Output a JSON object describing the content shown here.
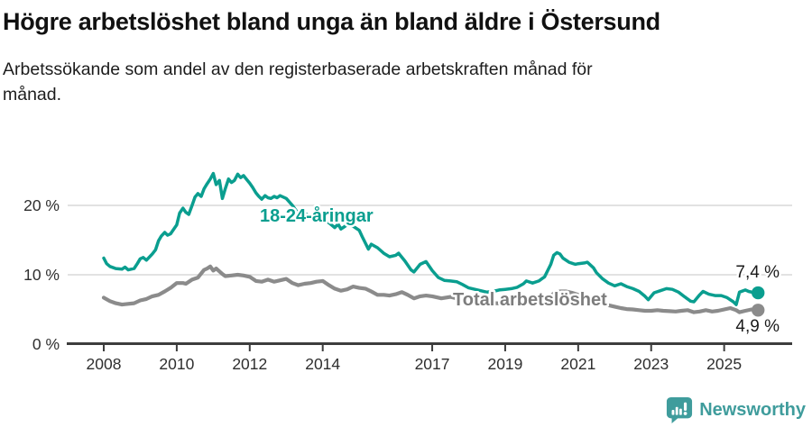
{
  "header": {
    "title": "Högre arbetslöshet bland unga än bland äldre i Östersund",
    "subtitle": "Arbetssökande som andel av den registerbaserade arbetskraften månad för månad."
  },
  "footer": {
    "brand": "Newsworthy",
    "logo_icon": "bar-chart-exclamation-speech-bubble"
  },
  "colors": {
    "youth_line": "#0a9e8f",
    "total_line": "#8b8b8b",
    "total_label": "#7d7d7d",
    "axis": "#3d3d3d",
    "gridline": "#d8d8d8",
    "text_dark": "#1a1a1a",
    "brand_teal": "#3f9c9c"
  },
  "chart_data": {
    "type": "line",
    "title": "Högre arbetslöshet bland unga än bland äldre i Östersund",
    "subtitle": "Arbetssökande som andel av den registerbaserade arbetskraften månad för månad.",
    "x_range": [
      2008.0,
      2025.9
    ],
    "ylim": [
      0,
      25.5
    ],
    "grid": "horizontal-only",
    "legend_position": "inline-labels-on-lines",
    "y_ticks": [
      {
        "v": 0,
        "label": "0 %"
      },
      {
        "v": 10,
        "label": "10 %"
      },
      {
        "v": 20,
        "label": "20 %"
      }
    ],
    "x_ticks": [
      {
        "v": 2008,
        "label": "2008"
      },
      {
        "v": 2010,
        "label": "2010"
      },
      {
        "v": 2012,
        "label": "2012"
      },
      {
        "v": 2014,
        "label": "2014"
      },
      {
        "v": 2017,
        "label": "2017"
      },
      {
        "v": 2019,
        "label": "2019"
      },
      {
        "v": 2021,
        "label": "2021"
      },
      {
        "v": 2023,
        "label": "2023"
      },
      {
        "v": 2025,
        "label": "2025"
      }
    ],
    "series": [
      {
        "name": "18-24-åringar",
        "color": "#0a9e8f",
        "end_label": "7,4 %",
        "end_value": 7.4,
        "points": [
          [
            2008.0,
            12.4
          ],
          [
            2008.08,
            11.6
          ],
          [
            2008.17,
            11.2
          ],
          [
            2008.33,
            10.9
          ],
          [
            2008.5,
            10.8
          ],
          [
            2008.58,
            11.1
          ],
          [
            2008.67,
            10.7
          ],
          [
            2008.83,
            10.9
          ],
          [
            2008.92,
            11.6
          ],
          [
            2009.0,
            12.3
          ],
          [
            2009.08,
            12.5
          ],
          [
            2009.17,
            12.1
          ],
          [
            2009.33,
            13.0
          ],
          [
            2009.42,
            13.6
          ],
          [
            2009.5,
            14.9
          ],
          [
            2009.58,
            15.6
          ],
          [
            2009.67,
            16.1
          ],
          [
            2009.75,
            15.7
          ],
          [
            2009.83,
            15.9
          ],
          [
            2009.92,
            16.6
          ],
          [
            2010.0,
            17.2
          ],
          [
            2010.08,
            18.9
          ],
          [
            2010.17,
            19.6
          ],
          [
            2010.25,
            19.0
          ],
          [
            2010.33,
            18.7
          ],
          [
            2010.42,
            20.0
          ],
          [
            2010.5,
            21.2
          ],
          [
            2010.58,
            21.7
          ],
          [
            2010.67,
            21.3
          ],
          [
            2010.75,
            22.4
          ],
          [
            2010.83,
            23.1
          ],
          [
            2010.92,
            23.8
          ],
          [
            2011.0,
            24.6
          ],
          [
            2011.08,
            23.0
          ],
          [
            2011.17,
            23.6
          ],
          [
            2011.25,
            21.0
          ],
          [
            2011.33,
            22.4
          ],
          [
            2011.42,
            23.8
          ],
          [
            2011.5,
            23.3
          ],
          [
            2011.58,
            23.6
          ],
          [
            2011.67,
            24.5
          ],
          [
            2011.75,
            24.0
          ],
          [
            2011.83,
            24.3
          ],
          [
            2011.92,
            23.7
          ],
          [
            2012.0,
            23.2
          ],
          [
            2012.08,
            22.6
          ],
          [
            2012.17,
            21.8
          ],
          [
            2012.25,
            21.3
          ],
          [
            2012.33,
            20.9
          ],
          [
            2012.42,
            21.4
          ],
          [
            2012.5,
            21.1
          ],
          [
            2012.58,
            21.0
          ],
          [
            2012.67,
            21.3
          ],
          [
            2012.75,
            21.1
          ],
          [
            2012.83,
            21.4
          ],
          [
            2012.92,
            21.2
          ],
          [
            2013.0,
            21.0
          ],
          [
            2013.17,
            20.0
          ],
          [
            2013.33,
            18.8
          ],
          [
            2013.5,
            18.9
          ],
          [
            2013.67,
            18.3
          ],
          [
            2013.83,
            17.9
          ],
          [
            2014.0,
            18.0
          ],
          [
            2014.17,
            17.5
          ],
          [
            2014.33,
            16.8
          ],
          [
            2014.42,
            17.3
          ],
          [
            2014.5,
            16.6
          ],
          [
            2014.67,
            17.2
          ],
          [
            2014.83,
            17.0
          ],
          [
            2015.0,
            16.4
          ],
          [
            2015.08,
            15.5
          ],
          [
            2015.25,
            13.7
          ],
          [
            2015.33,
            14.4
          ],
          [
            2015.5,
            13.9
          ],
          [
            2015.67,
            13.1
          ],
          [
            2015.83,
            12.6
          ],
          [
            2016.0,
            12.8
          ],
          [
            2016.08,
            13.1
          ],
          [
            2016.25,
            12.0
          ],
          [
            2016.42,
            10.7
          ],
          [
            2016.5,
            10.4
          ],
          [
            2016.67,
            11.5
          ],
          [
            2016.83,
            11.9
          ],
          [
            2017.0,
            10.6
          ],
          [
            2017.17,
            9.6
          ],
          [
            2017.33,
            9.2
          ],
          [
            2017.5,
            9.1
          ],
          [
            2017.67,
            9.0
          ],
          [
            2017.83,
            8.6
          ],
          [
            2018.0,
            8.1
          ],
          [
            2018.17,
            7.9
          ],
          [
            2018.33,
            7.7
          ],
          [
            2018.5,
            7.5
          ],
          [
            2018.67,
            7.6
          ],
          [
            2018.83,
            7.8
          ],
          [
            2019.0,
            7.9
          ],
          [
            2019.17,
            8.0
          ],
          [
            2019.33,
            8.2
          ],
          [
            2019.5,
            8.7
          ],
          [
            2019.58,
            9.1
          ],
          [
            2019.75,
            8.8
          ],
          [
            2019.92,
            9.1
          ],
          [
            2020.0,
            9.4
          ],
          [
            2020.08,
            9.7
          ],
          [
            2020.25,
            11.5
          ],
          [
            2020.33,
            12.8
          ],
          [
            2020.42,
            13.2
          ],
          [
            2020.5,
            13.0
          ],
          [
            2020.58,
            12.4
          ],
          [
            2020.75,
            11.8
          ],
          [
            2020.92,
            11.5
          ],
          [
            2021.0,
            11.6
          ],
          [
            2021.17,
            11.7
          ],
          [
            2021.25,
            11.8
          ],
          [
            2021.42,
            11.0
          ],
          [
            2021.5,
            10.3
          ],
          [
            2021.67,
            9.4
          ],
          [
            2021.83,
            8.8
          ],
          [
            2022.0,
            8.4
          ],
          [
            2022.17,
            8.7
          ],
          [
            2022.33,
            8.3
          ],
          [
            2022.5,
            8.0
          ],
          [
            2022.67,
            7.6
          ],
          [
            2022.83,
            6.9
          ],
          [
            2022.92,
            6.4
          ],
          [
            2023.08,
            7.4
          ],
          [
            2023.25,
            7.7
          ],
          [
            2023.42,
            8.0
          ],
          [
            2023.58,
            7.9
          ],
          [
            2023.75,
            7.5
          ],
          [
            2023.92,
            6.8
          ],
          [
            2024.0,
            6.5
          ],
          [
            2024.08,
            6.2
          ],
          [
            2024.17,
            6.1
          ],
          [
            2024.33,
            7.1
          ],
          [
            2024.42,
            7.6
          ],
          [
            2024.58,
            7.2
          ],
          [
            2024.75,
            7.0
          ],
          [
            2024.92,
            7.0
          ],
          [
            2025.08,
            6.7
          ],
          [
            2025.25,
            6.1
          ],
          [
            2025.33,
            5.7
          ],
          [
            2025.42,
            7.5
          ],
          [
            2025.58,
            7.8
          ],
          [
            2025.67,
            7.6
          ],
          [
            2025.83,
            7.4
          ]
        ]
      },
      {
        "name": "Total arbetslöshet",
        "color": "#8b8b8b",
        "end_label": "4,9 %",
        "end_value": 4.9,
        "points": [
          [
            2008.0,
            6.7
          ],
          [
            2008.17,
            6.2
          ],
          [
            2008.33,
            5.9
          ],
          [
            2008.5,
            5.7
          ],
          [
            2008.67,
            5.8
          ],
          [
            2008.83,
            5.9
          ],
          [
            2009.0,
            6.3
          ],
          [
            2009.17,
            6.5
          ],
          [
            2009.33,
            6.9
          ],
          [
            2009.5,
            7.1
          ],
          [
            2009.67,
            7.6
          ],
          [
            2009.83,
            8.1
          ],
          [
            2010.0,
            8.8
          ],
          [
            2010.17,
            8.8
          ],
          [
            2010.25,
            8.7
          ],
          [
            2010.42,
            9.3
          ],
          [
            2010.58,
            9.6
          ],
          [
            2010.75,
            10.7
          ],
          [
            2010.83,
            10.9
          ],
          [
            2010.92,
            11.2
          ],
          [
            2011.0,
            10.6
          ],
          [
            2011.08,
            10.9
          ],
          [
            2011.25,
            10.1
          ],
          [
            2011.33,
            9.8
          ],
          [
            2011.5,
            9.9
          ],
          [
            2011.67,
            10.0
          ],
          [
            2011.83,
            9.9
          ],
          [
            2012.0,
            9.7
          ],
          [
            2012.17,
            9.1
          ],
          [
            2012.33,
            9.0
          ],
          [
            2012.5,
            9.3
          ],
          [
            2012.67,
            9.0
          ],
          [
            2012.83,
            9.2
          ],
          [
            2013.0,
            9.4
          ],
          [
            2013.17,
            8.8
          ],
          [
            2013.33,
            8.5
          ],
          [
            2013.5,
            8.7
          ],
          [
            2013.67,
            8.8
          ],
          [
            2013.83,
            9.0
          ],
          [
            2014.0,
            9.1
          ],
          [
            2014.17,
            8.5
          ],
          [
            2014.33,
            8.0
          ],
          [
            2014.5,
            7.7
          ],
          [
            2014.67,
            7.9
          ],
          [
            2014.83,
            8.3
          ],
          [
            2015.0,
            8.1
          ],
          [
            2015.17,
            8.0
          ],
          [
            2015.33,
            7.6
          ],
          [
            2015.5,
            7.1
          ],
          [
            2015.67,
            7.1
          ],
          [
            2015.83,
            7.0
          ],
          [
            2016.0,
            7.2
          ],
          [
            2016.17,
            7.5
          ],
          [
            2016.33,
            7.1
          ],
          [
            2016.5,
            6.6
          ],
          [
            2016.67,
            6.9
          ],
          [
            2016.83,
            7.0
          ],
          [
            2017.0,
            6.9
          ],
          [
            2017.25,
            6.6
          ],
          [
            2017.5,
            6.8
          ],
          [
            2017.75,
            6.5
          ],
          [
            2018.0,
            6.3
          ],
          [
            2018.25,
            6.1
          ],
          [
            2018.5,
            6.0
          ],
          [
            2018.75,
            5.9
          ],
          [
            2019.0,
            5.8
          ],
          [
            2019.25,
            5.9
          ],
          [
            2019.5,
            5.8
          ],
          [
            2019.75,
            5.9
          ],
          [
            2020.0,
            6.1
          ],
          [
            2020.17,
            6.6
          ],
          [
            2020.33,
            7.3
          ],
          [
            2020.5,
            7.6
          ],
          [
            2020.67,
            7.6
          ],
          [
            2020.83,
            7.4
          ],
          [
            2021.0,
            7.1
          ],
          [
            2021.25,
            6.7
          ],
          [
            2021.5,
            6.2
          ],
          [
            2021.75,
            5.7
          ],
          [
            2022.0,
            5.4
          ],
          [
            2022.17,
            5.2
          ],
          [
            2022.33,
            5.05
          ],
          [
            2022.5,
            5.0
          ],
          [
            2022.67,
            4.9
          ],
          [
            2022.83,
            4.8
          ],
          [
            2023.0,
            4.8
          ],
          [
            2023.17,
            4.9
          ],
          [
            2023.33,
            4.8
          ],
          [
            2023.5,
            4.75
          ],
          [
            2023.67,
            4.7
          ],
          [
            2023.83,
            4.8
          ],
          [
            2024.0,
            4.9
          ],
          [
            2024.17,
            4.6
          ],
          [
            2024.33,
            4.7
          ],
          [
            2024.5,
            4.9
          ],
          [
            2024.67,
            4.7
          ],
          [
            2024.83,
            4.8
          ],
          [
            2025.0,
            5.0
          ],
          [
            2025.17,
            5.2
          ],
          [
            2025.33,
            4.9
          ],
          [
            2025.42,
            4.6
          ],
          [
            2025.58,
            4.8
          ],
          [
            2025.75,
            5.0
          ],
          [
            2025.83,
            4.9
          ]
        ]
      }
    ]
  }
}
